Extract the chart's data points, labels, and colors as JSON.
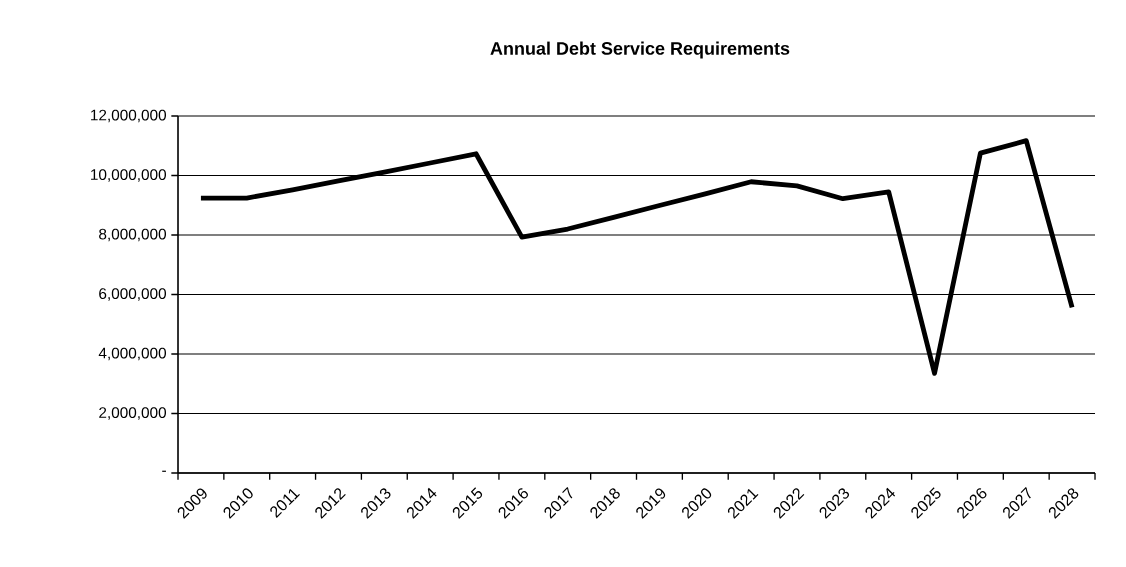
{
  "chart_data": {
    "type": "line",
    "title": "Annual Debt Service Requirements",
    "categories": [
      "2009",
      "2010",
      "2011",
      "2012",
      "2013",
      "2014",
      "2015",
      "2016",
      "2017",
      "2018",
      "2019",
      "2020",
      "2021",
      "2022",
      "2023",
      "2024",
      "2025",
      "2026",
      "2027",
      "2028"
    ],
    "series": [
      {
        "color": "#000000",
        "values": [
          9240000,
          9240000,
          9520000,
          9820000,
          10110000,
          10420000,
          10730000,
          7930000,
          8200000,
          8590000,
          8990000,
          9380000,
          9790000,
          9650000,
          9220000,
          9450000,
          3350000,
          10750000,
          11170000,
          5570000
        ]
      }
    ],
    "ylim": [
      0,
      12000000
    ],
    "yticks": [
      {
        "value": 0,
        "label": "-"
      },
      {
        "value": 2000000,
        "label": "2,000,000"
      },
      {
        "value": 4000000,
        "label": "4,000,000"
      },
      {
        "value": 6000000,
        "label": "6,000,000"
      },
      {
        "value": 8000000,
        "label": "8,000,000"
      },
      {
        "value": 10000000,
        "label": "10,000,000"
      },
      {
        "value": 12000000,
        "label": "12,000,000"
      }
    ],
    "grid": "y",
    "marker": "none",
    "line_style": "solid"
  }
}
